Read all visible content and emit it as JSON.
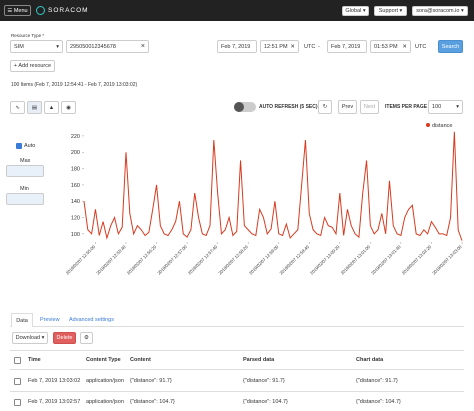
{
  "nav": {
    "menu": "Menu",
    "logo": "SORACOM",
    "global": "Global",
    "support": "Support",
    "user": "sora@soracom.io"
  },
  "search": {
    "resource_type_label": "Resource Type *",
    "resource_type": "SIM",
    "resource_id": "295050012345678",
    "from_date": "Feb 7, 2019",
    "from_time": "12:51 PM",
    "from_tz": "UTC",
    "separator": "-",
    "to_date": "Feb 7, 2019",
    "to_time": "01:53 PM",
    "to_tz": "UTC",
    "search_button": "Search",
    "add_resource": "+ Add resource"
  },
  "summary": "100 Items (Feb 7, 2019 12:54:41 - Feb 7, 2019 13:03:02)",
  "toolbar": {
    "auto_refresh": "AUTO REFRESH (5 SEC)",
    "prev": "Prev",
    "next": "Next",
    "items_per_page_label": "ITEMS PER PAGE",
    "items_per_page": "100"
  },
  "side": {
    "auto": "Auto",
    "max": "Max",
    "min": "Min"
  },
  "chart_data": {
    "type": "line",
    "categories": [
      null,
      null,
      null,
      "2019/02/07 12:55:00",
      null,
      null,
      null,
      null,
      null,
      null,
      null,
      "2019/02/07 12:55:40",
      null,
      null,
      null,
      null,
      null,
      null,
      null,
      "2019/02/07 12:56:20",
      null,
      null,
      null,
      null,
      null,
      null,
      null,
      "2019/02/07 12:57:00",
      null,
      null,
      null,
      null,
      null,
      null,
      null,
      "2019/02/07 12:57:40",
      null,
      null,
      null,
      null,
      null,
      null,
      null,
      "2019/02/07 12:58:20",
      null,
      null,
      null,
      null,
      null,
      null,
      null,
      "2019/02/07 12:59:00",
      null,
      null,
      null,
      null,
      null,
      null,
      null,
      "2019/02/07 12:59:40",
      null,
      null,
      null,
      null,
      null,
      null,
      null,
      "2019/02/07 13:00:20",
      null,
      null,
      null,
      null,
      null,
      null,
      null,
      "2019/02/07 13:01:00",
      null,
      null,
      null,
      null,
      null,
      null,
      null,
      "2019/02/07 13:01:40",
      null,
      null,
      null,
      null,
      null,
      null,
      null,
      "2019/02/07 13:02:20",
      null,
      null,
      null,
      null,
      null,
      null,
      null,
      "2019/02/07 13:03:00"
    ],
    "series": [
      {
        "name": "distance",
        "color": "#d83a1f",
        "values": [
          140,
          105,
          100,
          130,
          98,
          115,
          95,
          110,
          120,
          100,
          108,
          200,
          125,
          100,
          110,
          105,
          98,
          102,
          130,
          160,
          110,
          100,
          98,
          105,
          115,
          140,
          100,
          96,
          105,
          150,
          120,
          100,
          98,
          110,
          215,
          150,
          100,
          105,
          120,
          98,
          103,
          190,
          110,
          105,
          100,
          98,
          130,
          120,
          100,
          106,
          140,
          100,
          98,
          112,
          95,
          100,
          105,
          160,
          215,
          125,
          105,
          100,
          98,
          120,
          110,
          108,
          100,
          150,
          98,
          130,
          110,
          100,
          96,
          150,
          190,
          110,
          100,
          105,
          125,
          100,
          165,
          110,
          100,
          98,
          120,
          130,
          135,
          100,
          98,
          105,
          100,
          115,
          108,
          100,
          100,
          98,
          120,
          225,
          104.7,
          91.7
        ]
      }
    ],
    "ylim": [
      90,
      226
    ],
    "yticks": [
      100,
      120,
      140,
      160,
      180,
      200,
      220
    ],
    "legend": "top-right"
  },
  "tabs": [
    "Data",
    "Preview",
    "Advanced settings"
  ],
  "actions": {
    "download": "Download",
    "delete": "Delete"
  },
  "table": {
    "columns": [
      "Time",
      "Content Type",
      "Content",
      "Parsed data",
      "Chart data"
    ],
    "rows": [
      [
        "Feb 7, 2019 13:03:02",
        "application/json",
        "{\"distance\": 91.7}",
        "{\"distance\": 91.7}",
        "{\"distance\": 91.7}"
      ],
      [
        "Feb 7, 2019 13:02:57",
        "application/json",
        "{\"distance\": 104.7}",
        "{\"distance\": 104.7}",
        "{\"distance\": 104.7}"
      ]
    ]
  }
}
